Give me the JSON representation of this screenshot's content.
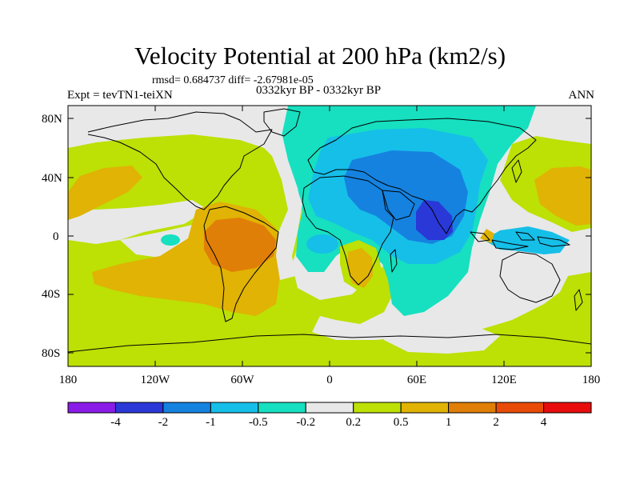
{
  "map": {
    "title": "Velocity Potential at 200 hPa (km2/s)",
    "stats": "rmsd= 0.684737 diff= -2.67981e-05",
    "left_label": "Expt = tevTN1-teiXN",
    "center_label": "0332kyr BP - 0332kyr BP",
    "right_label": "ANN",
    "lat_labels": [
      "80N",
      "40N",
      "0",
      "40S",
      "80S"
    ],
    "lon_labels": [
      "180",
      "120W",
      "60W",
      "0",
      "60E",
      "120E",
      "180"
    ]
  },
  "colorbar": {
    "colors": [
      "#8a1be8",
      "#2a38d8",
      "#1582e0",
      "#16bfe8",
      "#16e0c0",
      "#e8e8e8",
      "#bde005",
      "#e0b304",
      "#e07f07",
      "#e84b07",
      "#e80c0c"
    ],
    "labels": [
      "-4",
      "-2",
      "-1",
      "-0.5",
      "-0.2",
      "0.2",
      "0.5",
      "1",
      "2",
      "4"
    ]
  },
  "legend_colors": {
    "ocean_background": "#e8e8e8",
    "coastline": "#000000"
  }
}
